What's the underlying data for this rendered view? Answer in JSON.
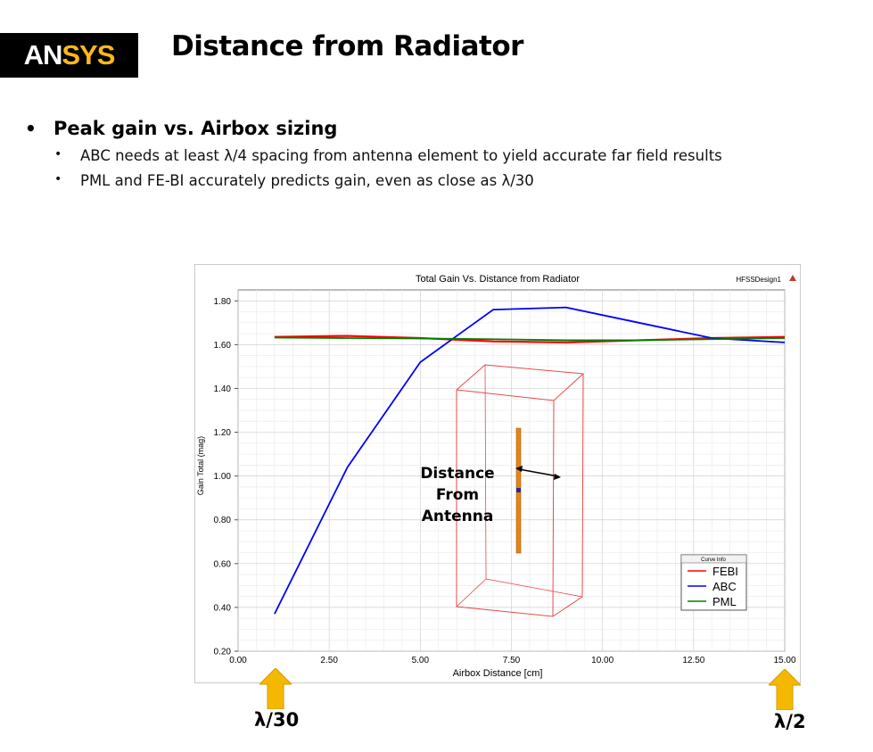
{
  "slide": {
    "logo_an": "AN",
    "logo_sys": "SYS",
    "title": "Distance from Radiator",
    "bullets": [
      {
        "text": "Peak gain vs. Airbox sizing",
        "sub": [
          "ABC needs at least λ/4 spacing from antenna element to yield accurate far field results",
          "PML and FE-BI accurately predicts gain, even as close as λ/30"
        ]
      }
    ],
    "annotation": "Distance From\nAntenna",
    "left_marker": "λ/30",
    "right_marker": "λ/2",
    "arrow_color": "#f5b800"
  },
  "chart_data": {
    "type": "line",
    "title": "Total Gain Vs. Distance from Radiator",
    "design_label": "HFSSDesign1",
    "xlabel": "Airbox Distance [cm]",
    "ylabel": "Gain Total (mag)",
    "xlim": [
      0,
      15
    ],
    "ylim": [
      0.2,
      1.85
    ],
    "xticks": [
      0,
      2.5,
      5,
      7.5,
      10,
      12.5,
      15
    ],
    "xtick_labels": [
      "0.00",
      "2.50",
      "5.00",
      "7.50",
      "10.00",
      "12.50",
      "15.00"
    ],
    "yticks": [
      0.2,
      0.4,
      0.6,
      0.8,
      1.0,
      1.2,
      1.4,
      1.6,
      1.8
    ],
    "ytick_labels": [
      "0.20",
      "0.40",
      "0.60",
      "0.80",
      "1.00",
      "1.20",
      "1.40",
      "1.60",
      "1.80"
    ],
    "grid": true,
    "legend_title": "Curve Info",
    "legend_position": "lower-right",
    "series": [
      {
        "name": "FEBI",
        "color": "#ff0000",
        "x": [
          1,
          3,
          5,
          7,
          9,
          11,
          13,
          15
        ],
        "y": [
          1.635,
          1.64,
          1.63,
          1.615,
          1.61,
          1.62,
          1.63,
          1.635
        ]
      },
      {
        "name": "ABC",
        "color": "#0000ff",
        "x": [
          1,
          3,
          5,
          7,
          9,
          11,
          13,
          15
        ],
        "y": [
          0.37,
          1.04,
          1.52,
          1.76,
          1.77,
          1.7,
          1.63,
          1.61
        ]
      },
      {
        "name": "PML",
        "color": "#008000",
        "x": [
          1,
          3,
          5,
          7,
          9,
          11,
          13,
          15
        ],
        "y": [
          1.632,
          1.63,
          1.628,
          1.625,
          1.62,
          1.62,
          1.625,
          1.63
        ]
      }
    ]
  }
}
